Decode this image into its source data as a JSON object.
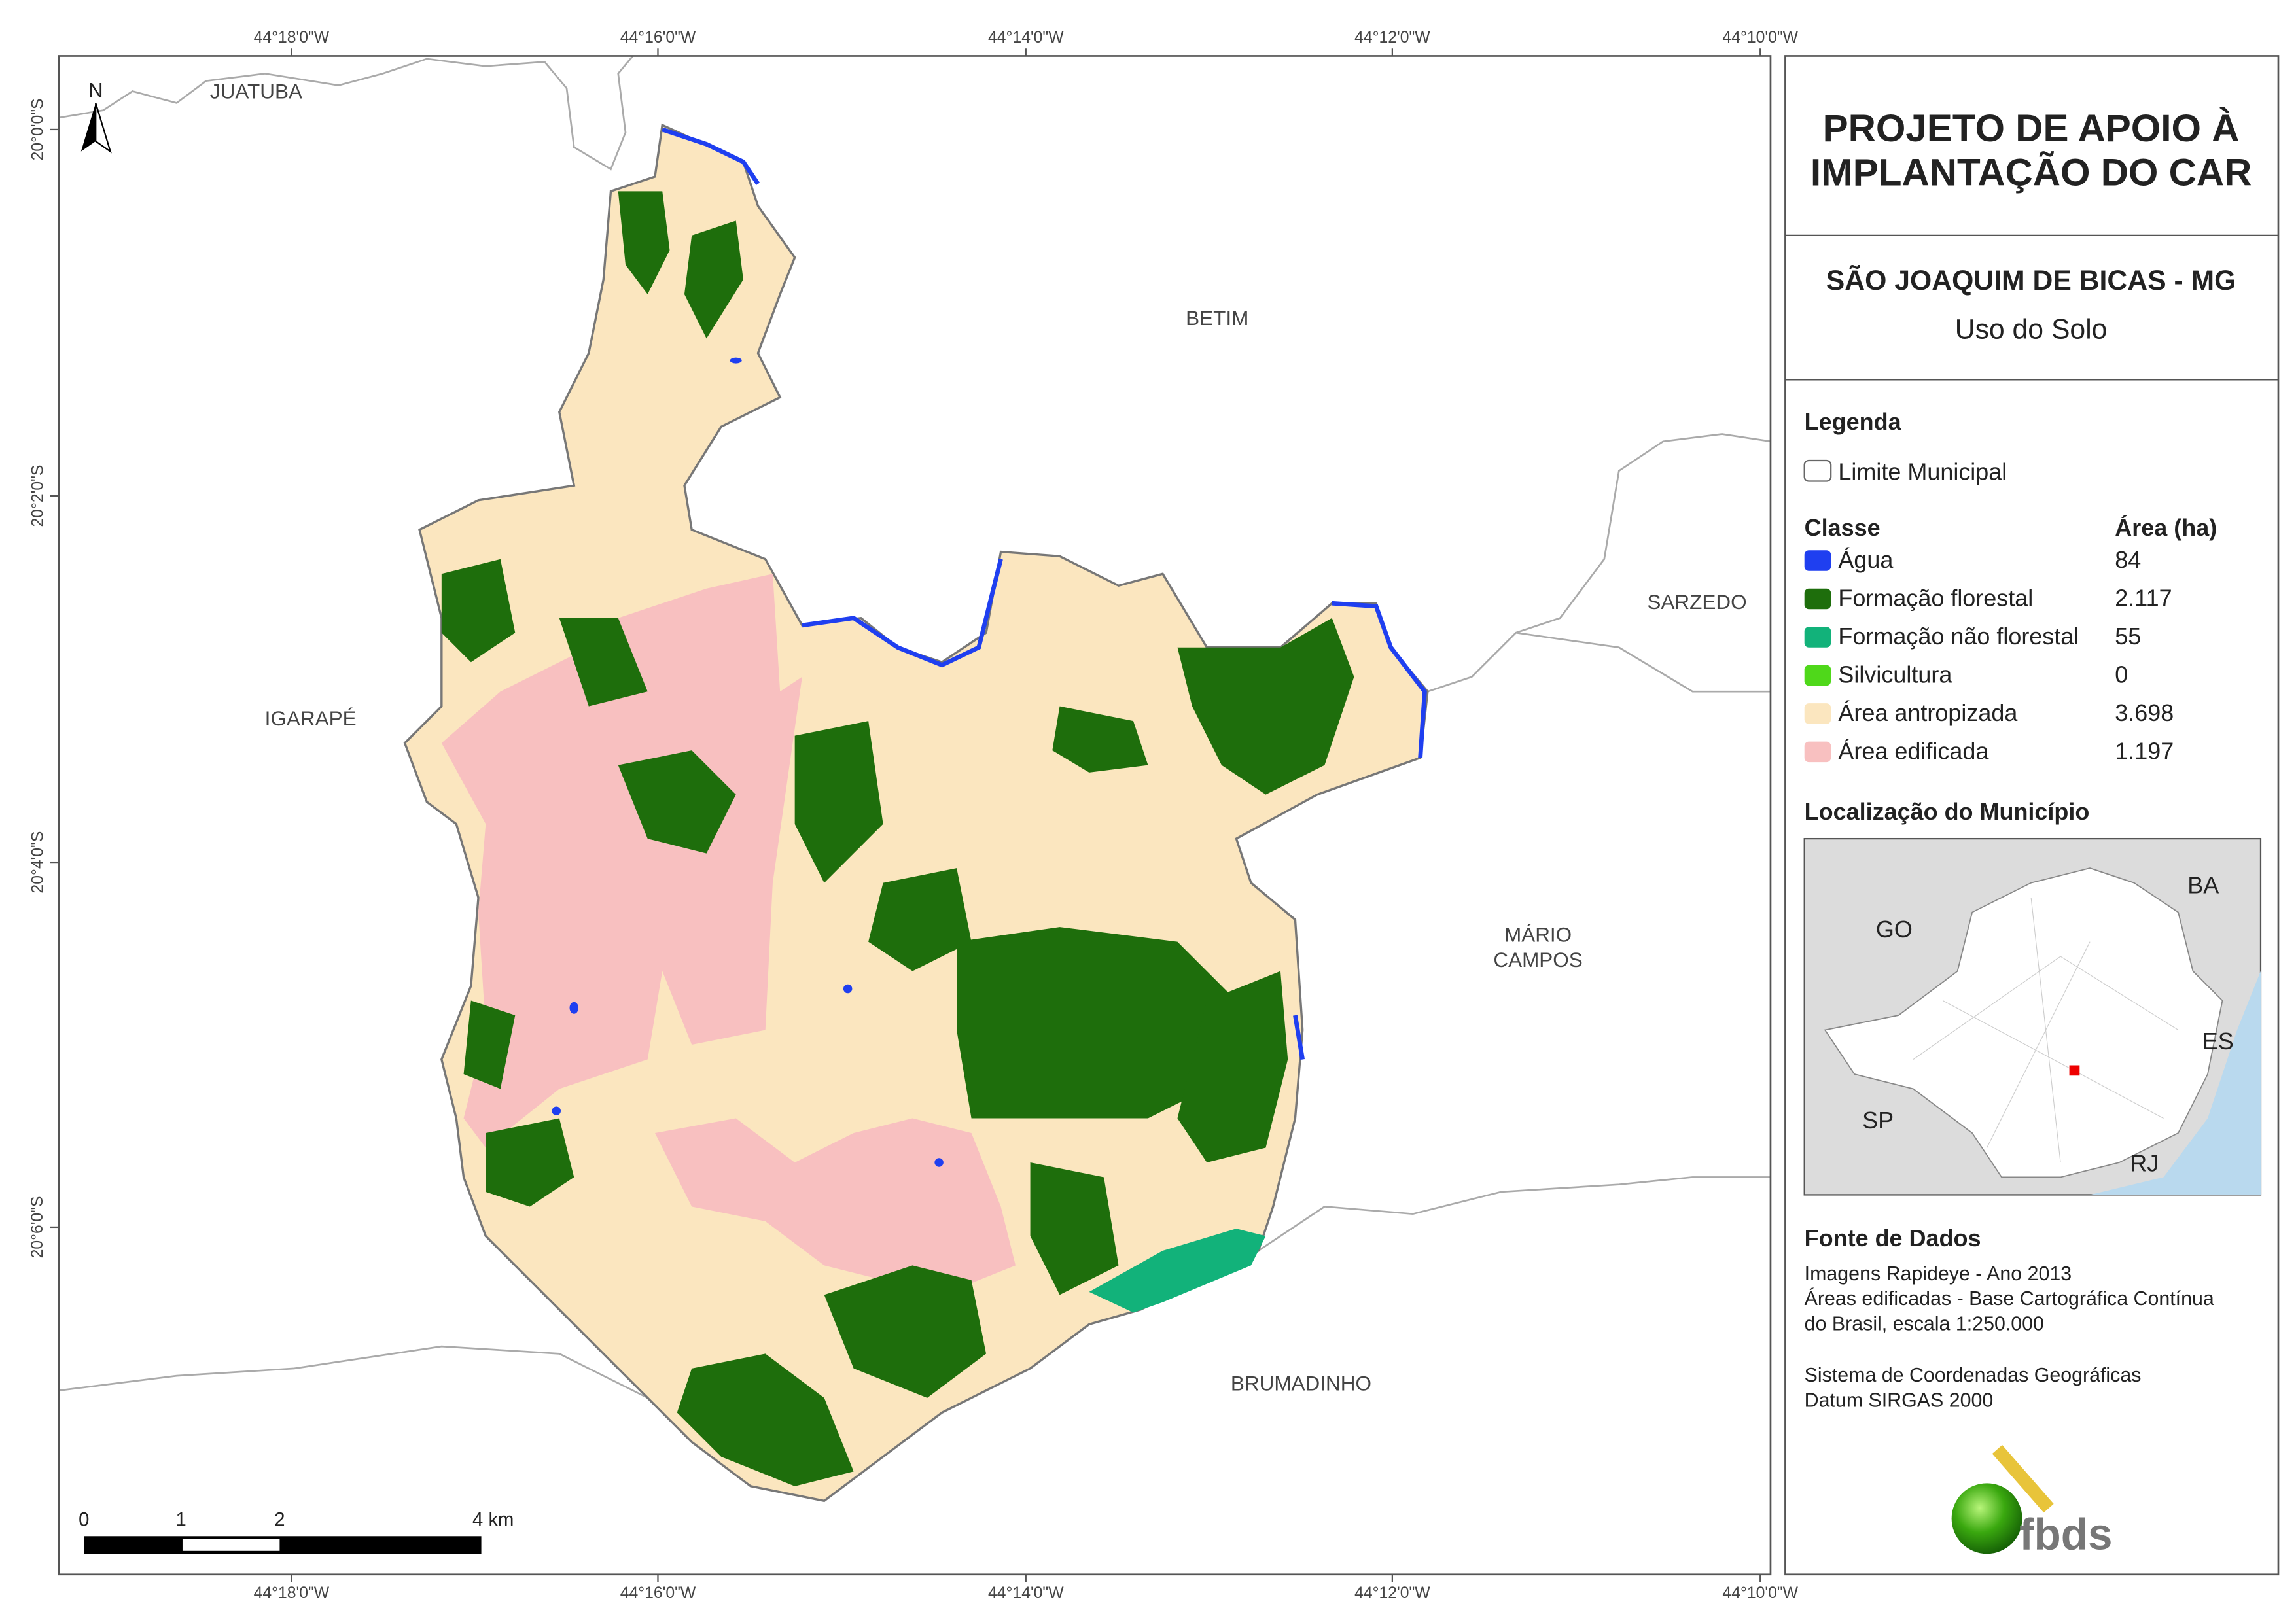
{
  "header": {
    "title_line1": "PROJETO DE APOIO À",
    "title_line2": "IMPLANTAÇÃO DO CAR",
    "municipality": "SÃO JOAQUIM DE BICAS - MG",
    "subject": "Uso do Solo"
  },
  "map": {
    "north": "N",
    "lon_ticks": [
      "44°18'0\"W",
      "44°16'0\"W",
      "44°14'0\"W",
      "44°12'0\"W",
      "44°10'0\"W"
    ],
    "lat_ticks": [
      "20°0'0\"S",
      "20°2'0\"S",
      "20°4'0\"S",
      "20°6'0\"S"
    ],
    "places": [
      "JUATUBA",
      "BETIM",
      "SARZEDO",
      "IGARAPÉ",
      "MÁRIO",
      "CAMPOS",
      "BRUMADINHO"
    ],
    "scale": [
      "0",
      "1",
      "2",
      "4 km"
    ]
  },
  "legend": {
    "title": "Legenda",
    "boundary": "Limite Municipal",
    "class_header": "Classe",
    "area_header": "Área (ha)",
    "classes": [
      {
        "name": "Água",
        "area": "84",
        "color": "#1f3ff0"
      },
      {
        "name": "Formação florestal",
        "area": "2.117",
        "color": "#1e6e0c"
      },
      {
        "name": "Formação não florestal",
        "area": "55",
        "color": "#12b27a"
      },
      {
        "name": "Silvicultura",
        "area": "0",
        "color": "#4fd81a"
      },
      {
        "name": "Área antropizada",
        "area": "3.698",
        "color": "#fbe6bf"
      },
      {
        "name": "Área edificada",
        "area": "1.197",
        "color": "#f8c0c0"
      }
    ]
  },
  "location": {
    "title": "Localização do Município",
    "states": [
      "BA",
      "GO",
      "ES",
      "SP",
      "RJ"
    ]
  },
  "sources": {
    "title": "Fonte de Dados",
    "lines": [
      "Imagens Rapideye - Ano 2013",
      "Áreas edificadas - Base Cartográfica Contínua",
      "do Brasil, escala 1:250.000",
      "Sistema de Coordenadas Geográficas",
      "Datum SIRGAS 2000"
    ]
  },
  "logo": "fbds"
}
